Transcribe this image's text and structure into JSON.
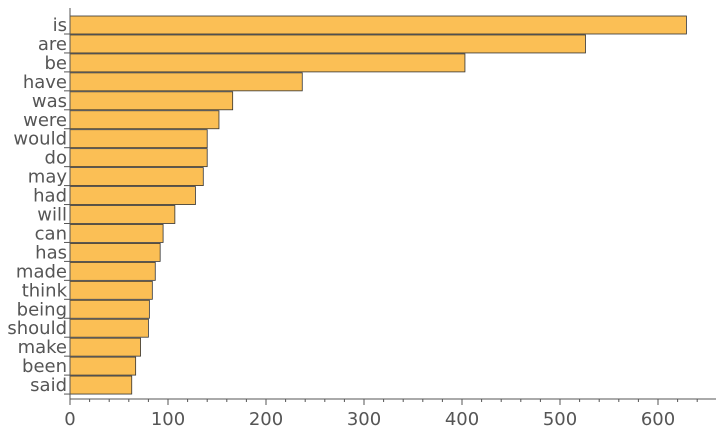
{
  "chart_data": {
    "type": "bar",
    "orientation": "horizontal",
    "categories": [
      "is",
      "are",
      "be",
      "have",
      "was",
      "were",
      "would",
      "do",
      "may",
      "had",
      "will",
      "can",
      "has",
      "made",
      "think",
      "being",
      "should",
      "make",
      "been",
      "said"
    ],
    "values": [
      629,
      526,
      403,
      237,
      166,
      152,
      140,
      140,
      136,
      128,
      107,
      95,
      92,
      87,
      84,
      81,
      80,
      72,
      67,
      63
    ],
    "title": "",
    "xlabel": "",
    "ylabel": "",
    "xlim": [
      0,
      660
    ],
    "x_ticks": [
      0,
      100,
      200,
      300,
      400,
      500,
      600
    ],
    "grid": false,
    "legend": "none",
    "colors": {
      "bar_fill": "#fbbf55",
      "bar_stroke": "#333333",
      "axis": "#555555",
      "text": "#555555"
    }
  }
}
